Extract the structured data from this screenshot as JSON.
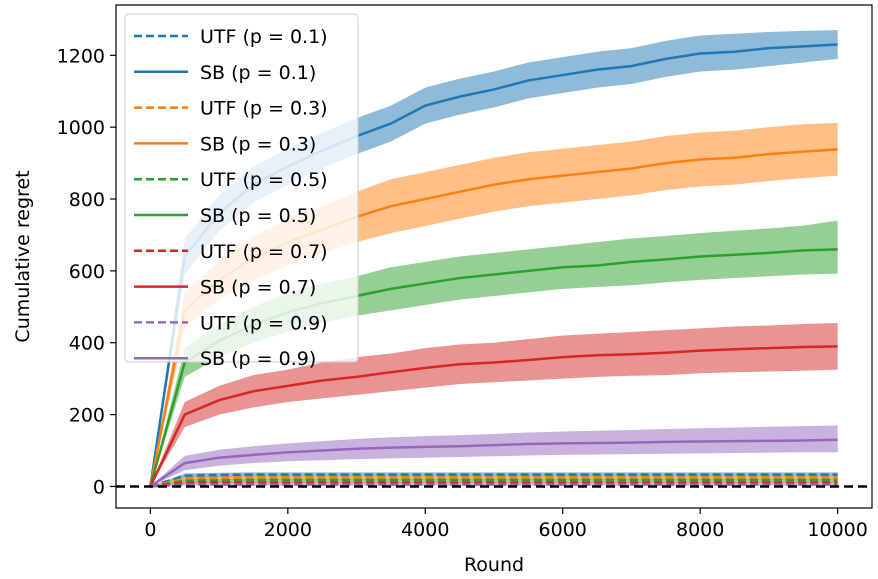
{
  "chart_data": {
    "type": "line",
    "title": "",
    "xlabel": "Round",
    "ylabel": "Cumulative regret",
    "xlim": [
      -500,
      10500
    ],
    "ylim": [
      -60,
      1340
    ],
    "xticks": [
      0,
      2000,
      4000,
      6000,
      8000,
      10000
    ],
    "yticks": [
      0,
      200,
      400,
      600,
      800,
      1000,
      1200
    ],
    "grid": false,
    "legend_position": "top-left",
    "reference_line": {
      "y": 0,
      "style": "dashed",
      "color": "#000000"
    },
    "x": [
      0,
      500,
      1000,
      1500,
      2000,
      2500,
      3000,
      3500,
      4000,
      4500,
      5000,
      5500,
      6000,
      6500,
      7000,
      7500,
      8000,
      8500,
      9000,
      9500,
      10000
    ],
    "series": [
      {
        "name": "UTF (p = 0.1)",
        "color": "#1f77b4",
        "style": "dashed",
        "values": [
          0,
          30,
          32,
          33,
          33,
          33,
          33,
          33,
          33,
          33,
          33,
          33,
          33,
          33,
          33,
          33,
          33,
          33,
          33,
          33,
          33
        ],
        "lower": [
          0,
          24,
          26,
          27,
          27,
          27,
          27,
          27,
          27,
          27,
          27,
          27,
          27,
          27,
          27,
          27,
          27,
          27,
          27,
          27,
          27
        ],
        "upper": [
          0,
          36,
          38,
          39,
          39,
          39,
          39,
          39,
          39,
          39,
          39,
          39,
          39,
          39,
          39,
          39,
          39,
          39,
          39,
          39,
          39
        ]
      },
      {
        "name": "SB (p = 0.1)",
        "color": "#1f77b4",
        "style": "solid",
        "values": [
          0,
          640,
          760,
          840,
          890,
          935,
          975,
          1010,
          1060,
          1085,
          1105,
          1130,
          1145,
          1160,
          1170,
          1190,
          1205,
          1210,
          1220,
          1225,
          1230
        ],
        "lower": [
          0,
          590,
          710,
          790,
          840,
          885,
          925,
          960,
          1010,
          1035,
          1055,
          1080,
          1095,
          1110,
          1120,
          1140,
          1155,
          1160,
          1170,
          1180,
          1190
        ],
        "upper": [
          0,
          690,
          810,
          890,
          940,
          985,
          1025,
          1060,
          1110,
          1135,
          1155,
          1180,
          1195,
          1210,
          1220,
          1240,
          1255,
          1260,
          1265,
          1268,
          1270
        ]
      },
      {
        "name": "UTF (p = 0.3)",
        "color": "#ff7f0e",
        "style": "dashed",
        "values": [
          0,
          22,
          24,
          25,
          25,
          25,
          25,
          25,
          25,
          25,
          25,
          25,
          25,
          25,
          25,
          25,
          25,
          25,
          25,
          25,
          25
        ],
        "lower": [
          0,
          17,
          19,
          20,
          20,
          20,
          20,
          20,
          20,
          20,
          20,
          20,
          20,
          20,
          20,
          20,
          20,
          20,
          20,
          20,
          20
        ],
        "upper": [
          0,
          27,
          29,
          30,
          30,
          30,
          30,
          30,
          30,
          30,
          30,
          30,
          30,
          30,
          30,
          30,
          30,
          30,
          30,
          30,
          30
        ]
      },
      {
        "name": "SB (p = 0.3)",
        "color": "#ff7f0e",
        "style": "solid",
        "values": [
          0,
          490,
          575,
          635,
          680,
          715,
          750,
          780,
          800,
          820,
          840,
          855,
          865,
          875,
          885,
          900,
          910,
          915,
          925,
          932,
          938
        ],
        "lower": [
          0,
          440,
          520,
          575,
          615,
          650,
          680,
          705,
          725,
          745,
          765,
          780,
          790,
          800,
          810,
          825,
          835,
          840,
          850,
          858,
          865
        ],
        "upper": [
          0,
          540,
          630,
          695,
          745,
          780,
          820,
          855,
          875,
          895,
          915,
          930,
          940,
          950,
          960,
          975,
          985,
          990,
          1000,
          1008,
          1012
        ]
      },
      {
        "name": "UTF (p = 0.5)",
        "color": "#2ca02c",
        "style": "dashed",
        "values": [
          0,
          16,
          17,
          18,
          18,
          18,
          18,
          18,
          18,
          18,
          18,
          18,
          18,
          18,
          18,
          18,
          18,
          18,
          18,
          18,
          18
        ],
        "lower": [
          0,
          12,
          13,
          14,
          14,
          14,
          14,
          14,
          14,
          14,
          14,
          14,
          14,
          14,
          14,
          14,
          14,
          14,
          14,
          14,
          14
        ],
        "upper": [
          0,
          20,
          21,
          22,
          22,
          22,
          22,
          22,
          22,
          22,
          22,
          22,
          22,
          22,
          22,
          22,
          22,
          22,
          22,
          22,
          22
        ]
      },
      {
        "name": "SB (p = 0.5)",
        "color": "#2ca02c",
        "style": "solid",
        "values": [
          0,
          345,
          405,
          450,
          485,
          510,
          530,
          550,
          565,
          580,
          590,
          600,
          610,
          615,
          625,
          632,
          640,
          645,
          650,
          657,
          660
        ],
        "lower": [
          0,
          305,
          360,
          400,
          430,
          455,
          475,
          490,
          505,
          520,
          530,
          540,
          550,
          555,
          560,
          568,
          575,
          580,
          585,
          590,
          592
        ],
        "upper": [
          0,
          385,
          450,
          500,
          540,
          565,
          585,
          610,
          625,
          640,
          650,
          660,
          670,
          680,
          690,
          697,
          705,
          712,
          718,
          726,
          740
        ]
      },
      {
        "name": "UTF (p = 0.7)",
        "color": "#d62728",
        "style": "dashed",
        "values": [
          0,
          10,
          11,
          11,
          11,
          11,
          11,
          11,
          11,
          11,
          11,
          11,
          11,
          11,
          11,
          11,
          11,
          11,
          11,
          11,
          11
        ],
        "lower": [
          0,
          7,
          8,
          8,
          8,
          8,
          8,
          8,
          8,
          8,
          8,
          8,
          8,
          8,
          8,
          8,
          8,
          8,
          8,
          8,
          8
        ],
        "upper": [
          0,
          13,
          14,
          14,
          14,
          14,
          14,
          14,
          14,
          14,
          14,
          14,
          14,
          14,
          14,
          14,
          14,
          14,
          14,
          14,
          14
        ]
      },
      {
        "name": "SB (p = 0.7)",
        "color": "#d62728",
        "style": "solid",
        "values": [
          0,
          200,
          240,
          265,
          280,
          295,
          305,
          318,
          330,
          340,
          345,
          352,
          360,
          365,
          368,
          372,
          378,
          382,
          385,
          388,
          390
        ],
        "lower": [
          0,
          165,
          200,
          220,
          235,
          245,
          255,
          265,
          275,
          285,
          290,
          295,
          300,
          305,
          308,
          310,
          315,
          318,
          320,
          322,
          325
        ],
        "upper": [
          0,
          235,
          280,
          310,
          325,
          345,
          360,
          370,
          385,
          395,
          400,
          410,
          420,
          425,
          430,
          435,
          440,
          445,
          448,
          452,
          455
        ]
      },
      {
        "name": "UTF (p = 0.9)",
        "color": "#9467bd",
        "style": "dashed",
        "values": [
          0,
          5,
          5,
          5,
          5,
          5,
          5,
          5,
          5,
          5,
          5,
          5,
          5,
          5,
          5,
          5,
          5,
          5,
          5,
          5,
          5
        ],
        "lower": [
          0,
          3,
          3,
          3,
          3,
          3,
          3,
          3,
          3,
          3,
          3,
          3,
          3,
          3,
          3,
          3,
          3,
          3,
          3,
          3,
          3
        ],
        "upper": [
          0,
          7,
          7,
          7,
          7,
          7,
          7,
          7,
          7,
          7,
          7,
          7,
          7,
          7,
          7,
          7,
          7,
          7,
          7,
          7,
          7
        ]
      },
      {
        "name": "SB (p = 0.9)",
        "color": "#9467bd",
        "style": "solid",
        "values": [
          0,
          65,
          80,
          88,
          95,
          100,
          105,
          108,
          110,
          112,
          115,
          118,
          120,
          121,
          122,
          124,
          125,
          126,
          127,
          128,
          130
        ],
        "lower": [
          0,
          45,
          58,
          65,
          70,
          73,
          76,
          78,
          80,
          82,
          84,
          86,
          88,
          89,
          90,
          91,
          92,
          93,
          94,
          95,
          95
        ],
        "upper": [
          0,
          85,
          102,
          112,
          120,
          126,
          132,
          137,
          140,
          143,
          146,
          150,
          153,
          155,
          157,
          160,
          162,
          164,
          166,
          168,
          170
        ]
      }
    ]
  }
}
